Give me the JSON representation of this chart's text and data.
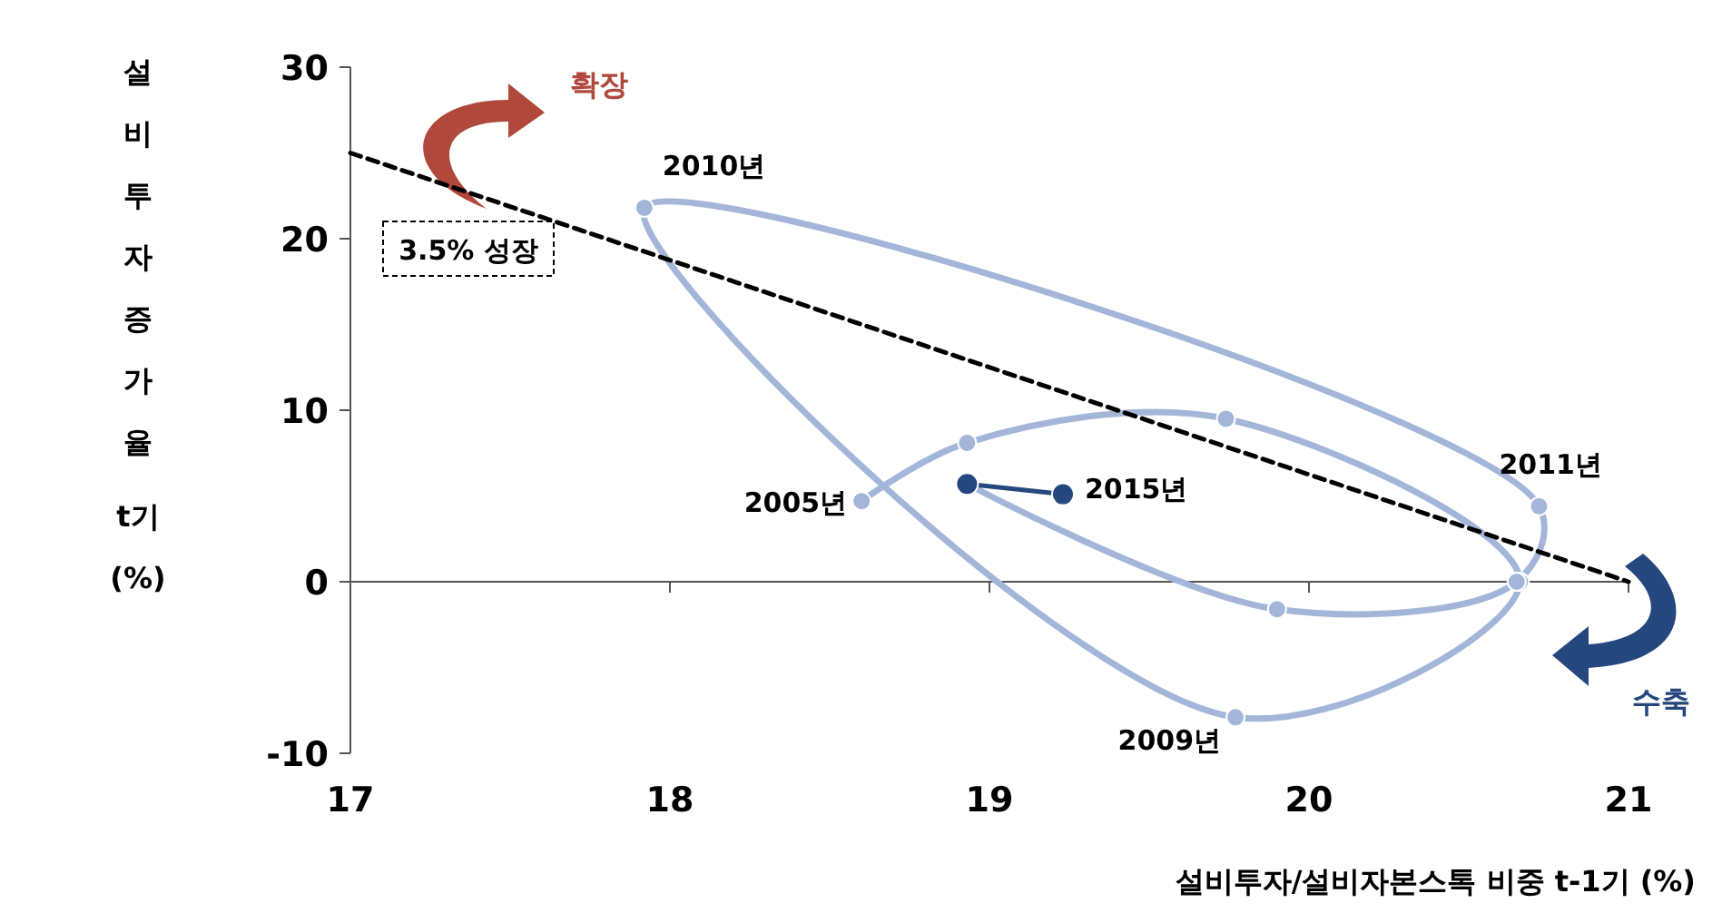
{
  "chart_data": {
    "type": "line",
    "ylabel": "설비투자증가율 t기 (%)",
    "xlabel": "설비투자/설비자본스톡  비중 t-1기 (%)",
    "xlim": [
      17,
      21
    ],
    "xticks": [
      17,
      18,
      19,
      20,
      21
    ],
    "ylim": [
      -10,
      30
    ],
    "yticks": [
      -10,
      0,
      10,
      20,
      30
    ],
    "marker": "circle",
    "series": [
      {
        "color": "#a3b6da",
        "x": [
          18.6,
          18.93,
          19.74,
          20.66,
          19.77,
          17.92,
          20.72,
          20.65,
          19.9,
          18.93
        ],
        "values": [
          4.7,
          8.1,
          9.5,
          0,
          -7.9,
          21.8,
          4.4,
          0,
          -1.6,
          5.7
        ]
      },
      {
        "color": "#24477e",
        "x": [
          18.93,
          19.23
        ],
        "values": [
          5.7,
          5.1
        ]
      },
      {
        "type": "line",
        "color": "#000000",
        "x": [
          17,
          21
        ],
        "values": [
          25,
          0
        ],
        "line_style": "dashed",
        "marker": "none"
      }
    ],
    "annotations": [
      {
        "text": "2005년",
        "x": 18.6,
        "y": 4.7
      },
      {
        "text": "2009년",
        "x": 19.77,
        "y": -7.9
      },
      {
        "text": "2010년",
        "x": 17.92,
        "y": 21.8
      },
      {
        "text": "2011년",
        "x": 20.72,
        "y": 4.4
      },
      {
        "text": "2015년",
        "x": 19.23,
        "y": 5.1
      },
      "3.5% 성장",
      "확장",
      "수축"
    ]
  }
}
